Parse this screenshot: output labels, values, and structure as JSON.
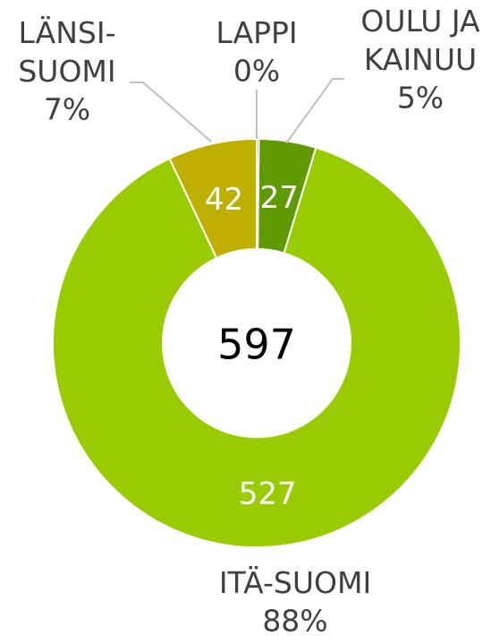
{
  "chart_data": {
    "type": "donut",
    "categories": [
      "LAPPI",
      "OULU JA\nKAINUU",
      "ITÄ-SUOMI",
      "LÄNSI-\nSUOMI"
    ],
    "values": [
      1,
      27,
      527,
      42
    ],
    "value_labels": [
      null,
      "27",
      "527",
      "42"
    ],
    "percent_labels": [
      "0%",
      "5%",
      "88%",
      "7%"
    ],
    "colors": [
      "#4e7a00",
      "#5f9a00",
      "#99cc00",
      "#bfb000"
    ],
    "total": 597
  }
}
